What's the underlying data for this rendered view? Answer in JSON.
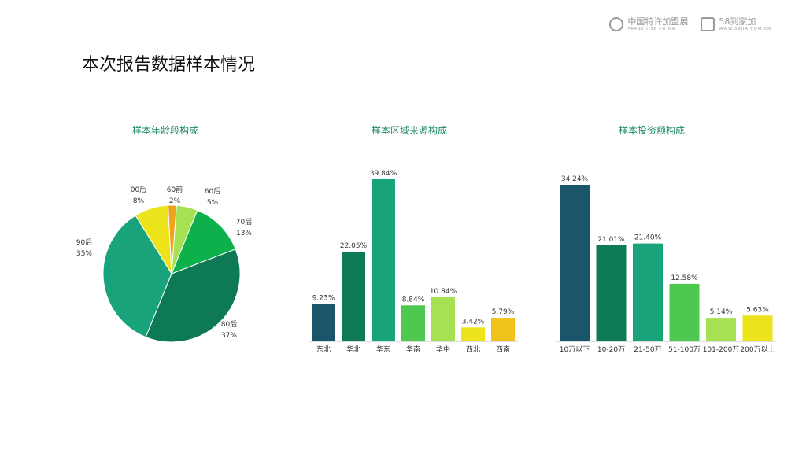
{
  "logos": [
    {
      "name": "中国特许加盟展",
      "sub": "FRANCHISE CHINA"
    },
    {
      "name": "58到家加",
      "sub": "WWW.58JIA.COM.CN"
    }
  ],
  "page_title": "本次报告数据样本情况",
  "colors": {
    "dark_teal": "#1b5569",
    "dark_green": "#0e7a55",
    "teal": "#19a37a",
    "green": "#0db04b",
    "light_green": "#4fc84f",
    "lime": "#a6e053",
    "yellow": "#ede31b",
    "orange": "#f1a21c",
    "gold": "#efc21c",
    "title_green": "#1f8a62"
  },
  "chart_data": [
    {
      "type": "pie",
      "title": "样本年龄段构成",
      "slices": [
        {
          "label": "60前",
          "value": 2,
          "pct": "2%",
          "color": "#f1a21c"
        },
        {
          "label": "60后",
          "value": 5,
          "pct": "5%",
          "color": "#a6e053"
        },
        {
          "label": "70后",
          "value": 13,
          "pct": "13%",
          "color": "#0db04b"
        },
        {
          "label": "80后",
          "value": 37,
          "pct": "37%",
          "color": "#0e7a55"
        },
        {
          "label": "90后",
          "value": 35,
          "pct": "35%",
          "color": "#19a37a"
        },
        {
          "label": "00后",
          "value": 8,
          "pct": "8%",
          "color": "#ede31b"
        }
      ]
    },
    {
      "type": "bar",
      "title": "样本区域来源构成",
      "categories": [
        "东北",
        "华北",
        "华东",
        "华南",
        "华中",
        "西北",
        "西南"
      ],
      "values": [
        9.23,
        22.05,
        39.84,
        8.84,
        10.84,
        3.42,
        5.79
      ],
      "labels": [
        "9.23%",
        "22.05%",
        "39.84%",
        "8.84%",
        "10.84%",
        "3.42%",
        "5.79%"
      ],
      "colors": [
        "#1b5569",
        "#0e7a55",
        "#19a37a",
        "#4fc84f",
        "#a6e053",
        "#ede31b",
        "#efc21c"
      ],
      "ylim": [
        0,
        39.84
      ]
    },
    {
      "type": "bar",
      "title": "样本投资额构成",
      "categories": [
        "10万以下",
        "10-20万",
        "21-50万",
        "51-100万",
        "101-200万",
        "200万以上"
      ],
      "values": [
        34.24,
        21.01,
        21.4,
        12.58,
        5.14,
        5.63
      ],
      "labels": [
        "34.24%",
        "21.01%",
        "21.40%",
        "12.58%",
        "5.14%",
        "5.63%"
      ],
      "colors": [
        "#1b5569",
        "#0e7a55",
        "#19a37a",
        "#4fc84f",
        "#a6e053",
        "#ede31b"
      ],
      "ylim": [
        0,
        34.24
      ]
    }
  ]
}
